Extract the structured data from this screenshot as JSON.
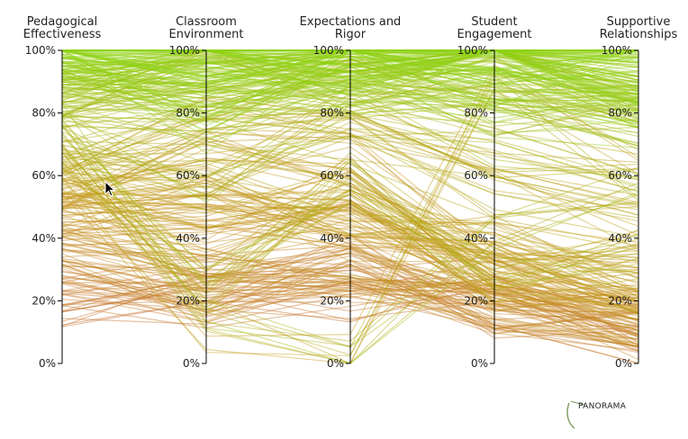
{
  "chart_data": {
    "type": "parallel-coordinates",
    "axes": [
      {
        "name": "Pedagogical Effectiveness",
        "title_lines": [
          "Pedagogical",
          "Effectiveness"
        ]
      },
      {
        "name": "Classroom Environment",
        "title_lines": [
          "Classroom",
          "Environment"
        ]
      },
      {
        "name": "Expectations and Rigor",
        "title_lines": [
          "Expectations and",
          "Rigor"
        ]
      },
      {
        "name": "Student Engagement",
        "title_lines": [
          "Student",
          "Engagement"
        ]
      },
      {
        "name": "Supportive Relationships",
        "title_lines": [
          "Supportive",
          "Relationships"
        ]
      }
    ],
    "ticks": [
      "0%",
      "20%",
      "40%",
      "60%",
      "80%",
      "100%"
    ],
    "tick_values": [
      0,
      20,
      40,
      60,
      80,
      100
    ],
    "ylim": [
      0,
      100
    ],
    "color_scale": {
      "low": "#c8693a",
      "mid": "#c59a1c",
      "high": "#8fd313"
    },
    "color_by": "Pedagogical Effectiveness",
    "seed_clusters": [
      [
        100,
        100,
        100,
        100,
        100
      ],
      [
        96,
        98,
        97,
        99,
        92
      ],
      [
        92,
        88,
        95,
        97,
        90
      ],
      [
        88,
        94,
        90,
        93,
        85
      ],
      [
        85,
        80,
        88,
        82,
        78
      ],
      [
        100,
        72,
        99,
        86,
        95
      ],
      [
        75,
        12,
        0,
        40,
        55
      ],
      [
        62,
        12,
        2,
        95,
        60
      ],
      [
        70,
        22,
        60,
        28,
        35
      ],
      [
        58,
        66,
        65,
        32,
        22
      ],
      [
        52,
        45,
        58,
        26,
        18
      ],
      [
        45,
        38,
        45,
        22,
        15
      ],
      [
        36,
        30,
        30,
        20,
        12
      ],
      [
        30,
        25,
        28,
        18,
        10
      ],
      [
        25,
        22,
        33,
        15,
        8
      ],
      [
        20,
        20,
        22,
        26,
        12
      ],
      [
        65,
        78,
        72,
        55,
        45
      ],
      [
        72,
        60,
        80,
        68,
        58
      ],
      [
        55,
        58,
        48,
        40,
        30
      ],
      [
        48,
        52,
        40,
        30,
        25
      ]
    ]
  },
  "brand": {
    "logo_text": "PANORAMA"
  }
}
